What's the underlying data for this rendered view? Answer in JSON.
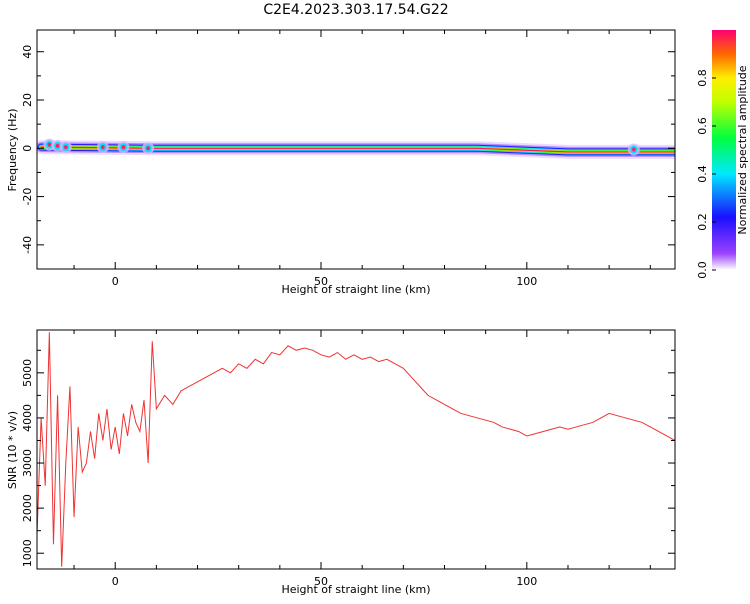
{
  "title": "C2E4.2023.303.17.54.G22",
  "chart_data": [
    {
      "type": "heatmap",
      "xlabel": "Height of straight line (km)",
      "ylabel": "Frequency (Hz)",
      "xlim": [
        -19,
        136
      ],
      "ylim": [
        -50,
        49
      ],
      "x_ticks": [
        0,
        50,
        100
      ],
      "x_tick_labels": [
        "0",
        "50",
        "100"
      ],
      "y_ticks": [
        -40,
        -20,
        0,
        20,
        40
      ],
      "y_tick_labels": [
        "-40",
        "-20",
        "0",
        "20",
        "40"
      ],
      "colorbar": {
        "label": "Normalized spectral amplitude",
        "range": [
          0,
          1
        ],
        "ticks": [
          0.0,
          0.2,
          0.4,
          0.6,
          0.8
        ],
        "tick_labels": [
          "0.0",
          "0.2",
          "0.4",
          "0.6",
          "0.8"
        ]
      },
      "ridge": [
        {
          "x": -18,
          "y": 0.5
        },
        {
          "x": 10,
          "y": 0
        },
        {
          "x": 88,
          "y": 0
        },
        {
          "x": 110,
          "y": -1.5
        },
        {
          "x": 136,
          "y": -1.5
        }
      ],
      "blobs": [
        {
          "x": -16,
          "y": 1.5
        },
        {
          "x": -14,
          "y": 1
        },
        {
          "x": -12,
          "y": 0.5
        },
        {
          "x": -3,
          "y": 0.5
        },
        {
          "x": 2,
          "y": 0.5
        },
        {
          "x": 8,
          "y": 0
        },
        {
          "x": 126,
          "y": -0.5
        }
      ]
    },
    {
      "type": "line",
      "xlabel": "Height of straight line (km)",
      "ylabel": "SNR (10 * v/v)",
      "xlim": [
        -19,
        136
      ],
      "ylim": [
        650,
        5950
      ],
      "x_ticks": [
        0,
        50,
        100
      ],
      "x_tick_labels": [
        "0",
        "50",
        "100"
      ],
      "y_ticks": [
        1000,
        2000,
        3000,
        4000,
        5000
      ],
      "y_tick_labels": [
        "1000",
        "2000",
        "3000",
        "4000",
        "5000"
      ],
      "color": "#ee3333",
      "series": [
        {
          "x": [
            -19,
            -18,
            -17,
            -16,
            -15,
            -14,
            -13,
            -12,
            -11,
            -10,
            -9,
            -8,
            -7,
            -6,
            -5,
            -4,
            -3,
            -2,
            -1,
            0,
            1,
            2,
            3,
            4,
            5,
            6,
            7,
            8,
            9,
            10,
            12,
            14,
            16,
            18,
            20,
            22,
            24,
            26,
            28,
            30,
            32,
            34,
            36,
            38,
            40,
            42,
            44,
            46,
            48,
            50,
            52,
            54,
            56,
            58,
            60,
            62,
            64,
            66,
            68,
            70,
            72,
            74,
            76,
            78,
            80,
            82,
            84,
            86,
            88,
            90,
            92,
            94,
            96,
            98,
            100,
            102,
            104,
            106,
            108,
            110,
            112,
            114,
            116,
            118,
            120,
            122,
            124,
            126,
            128,
            130,
            132,
            134,
            136
          ],
          "y": [
            1400,
            4000,
            2500,
            5900,
            1200,
            4500,
            700,
            3000,
            4700,
            1800,
            3800,
            2800,
            3000,
            3700,
            3100,
            4100,
            3500,
            4200,
            3300,
            3800,
            3200,
            4100,
            3600,
            4300,
            3900,
            3700,
            4400,
            3000,
            5700,
            4200,
            4500,
            4300,
            4600,
            4700,
            4800,
            4900,
            5000,
            5100,
            5000,
            5200,
            5100,
            5300,
            5200,
            5450,
            5400,
            5600,
            5500,
            5550,
            5500,
            5400,
            5350,
            5450,
            5300,
            5400,
            5300,
            5350,
            5250,
            5300,
            5200,
            5100,
            4900,
            4700,
            4500,
            4400,
            4300,
            4200,
            4100,
            4050,
            4000,
            3950,
            3900,
            3800,
            3750,
            3700,
            3600,
            3650,
            3700,
            3750,
            3800,
            3750,
            3800,
            3850,
            3900,
            4000,
            4100,
            4050,
            4000,
            3950,
            3900,
            3800,
            3700,
            3600,
            3500
          ]
        }
      ]
    }
  ]
}
